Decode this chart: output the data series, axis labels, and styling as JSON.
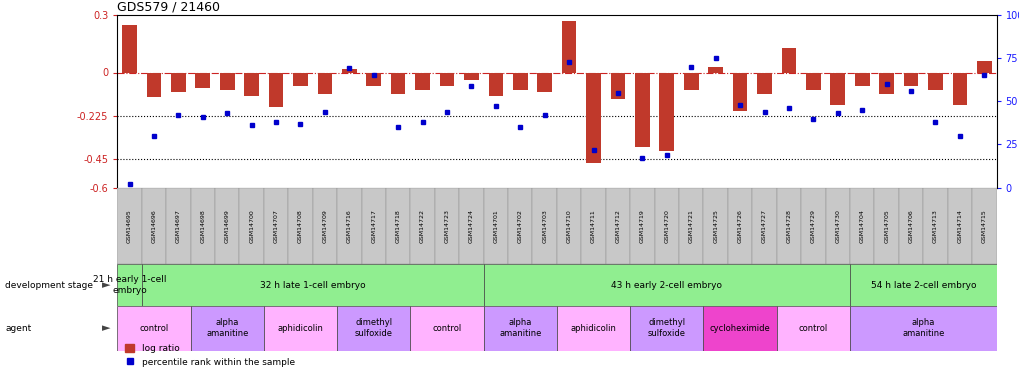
{
  "title": "GDS579 / 21460",
  "samples": [
    "GSM14695",
    "GSM14696",
    "GSM14697",
    "GSM14698",
    "GSM14699",
    "GSM14700",
    "GSM14707",
    "GSM14708",
    "GSM14709",
    "GSM14716",
    "GSM14717",
    "GSM14718",
    "GSM14722",
    "GSM14723",
    "GSM14724",
    "GSM14701",
    "GSM14702",
    "GSM14703",
    "GSM14710",
    "GSM14711",
    "GSM14712",
    "GSM14719",
    "GSM14720",
    "GSM14721",
    "GSM14725",
    "GSM14726",
    "GSM14727",
    "GSM14728",
    "GSM14729",
    "GSM14730",
    "GSM14704",
    "GSM14705",
    "GSM14706",
    "GSM14713",
    "GSM14714",
    "GSM14715"
  ],
  "log_ratio": [
    0.25,
    -0.13,
    -0.1,
    -0.08,
    -0.09,
    -0.12,
    -0.18,
    -0.07,
    -0.11,
    0.02,
    -0.07,
    -0.11,
    -0.09,
    -0.07,
    -0.04,
    -0.12,
    -0.09,
    -0.1,
    0.27,
    -0.47,
    -0.14,
    -0.39,
    -0.41,
    -0.09,
    0.03,
    -0.2,
    -0.11,
    0.13,
    -0.09,
    -0.17,
    -0.07,
    -0.11,
    -0.07,
    -0.09,
    -0.17,
    0.06
  ],
  "percentile": [
    2,
    30,
    42,
    41,
    43,
    36,
    38,
    37,
    44,
    69,
    65,
    35,
    38,
    44,
    59,
    47,
    35,
    42,
    73,
    22,
    55,
    17,
    19,
    70,
    75,
    48,
    44,
    46,
    40,
    43,
    45,
    60,
    56,
    38,
    30,
    65
  ],
  "ylim_left": [
    -0.6,
    0.3
  ],
  "ylim_right": [
    0,
    100
  ],
  "yticks_left": [
    -0.6,
    -0.45,
    -0.225,
    0.0,
    0.3
  ],
  "ytick_labels_left": [
    "-0.6",
    "-0.45",
    "-0.225",
    "0",
    "0.3"
  ],
  "yticks_right": [
    0,
    25,
    50,
    75,
    100
  ],
  "ytick_labels_right": [
    "0",
    "25",
    "50",
    "75",
    "100%"
  ],
  "bar_color": "#c0392b",
  "dot_color": "#0000cc",
  "dev_stages": [
    {
      "label": "21 h early 1-cell\nembryo",
      "start": 0,
      "end": 0
    },
    {
      "label": "32 h late 1-cell embryo",
      "start": 1,
      "end": 14
    },
    {
      "label": "43 h early 2-cell embryo",
      "start": 15,
      "end": 29
    },
    {
      "label": "54 h late 2-cell embryo",
      "start": 30,
      "end": 35
    }
  ],
  "agents": [
    {
      "label": "control",
      "start": 0,
      "end": 2,
      "color": "#ffb3ff"
    },
    {
      "label": "alpha\namanitine",
      "start": 3,
      "end": 5,
      "color": "#cc99ff"
    },
    {
      "label": "aphidicolin",
      "start": 6,
      "end": 8,
      "color": "#ffb3ff"
    },
    {
      "label": "dimethyl\nsulfoxide",
      "start": 9,
      "end": 11,
      "color": "#cc99ff"
    },
    {
      "label": "control",
      "start": 12,
      "end": 14,
      "color": "#ffb3ff"
    },
    {
      "label": "alpha\namanitine",
      "start": 15,
      "end": 17,
      "color": "#cc99ff"
    },
    {
      "label": "aphidicolin",
      "start": 18,
      "end": 20,
      "color": "#ffb3ff"
    },
    {
      "label": "dimethyl\nsulfoxide",
      "start": 21,
      "end": 23,
      "color": "#cc99ff"
    },
    {
      "label": "cycloheximide",
      "start": 24,
      "end": 26,
      "color": "#ee44cc"
    },
    {
      "label": "control",
      "start": 27,
      "end": 29,
      "color": "#ffb3ff"
    },
    {
      "label": "alpha\namanitine",
      "start": 30,
      "end": 35,
      "color": "#cc99ff"
    }
  ],
  "tick_bg_color": "#c8c8c8"
}
